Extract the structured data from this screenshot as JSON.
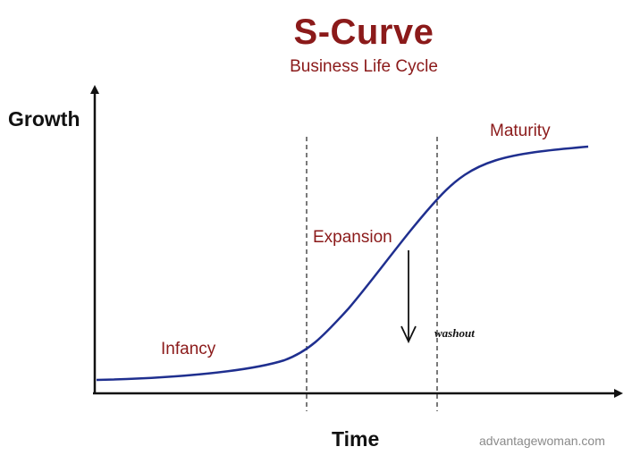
{
  "title": "S-Curve",
  "subtitle": "Business Life Cycle",
  "axes": {
    "y_label": "Growth",
    "x_label": "Time"
  },
  "stages": {
    "infancy": "Infancy",
    "expansion": "Expansion",
    "maturity": "Maturity"
  },
  "annotation": {
    "washout": "washout"
  },
  "credit": "advantagewoman.com",
  "colors": {
    "title": "#8b1a1a",
    "curve": "#1f2f8f",
    "axes": "#111111"
  }
}
